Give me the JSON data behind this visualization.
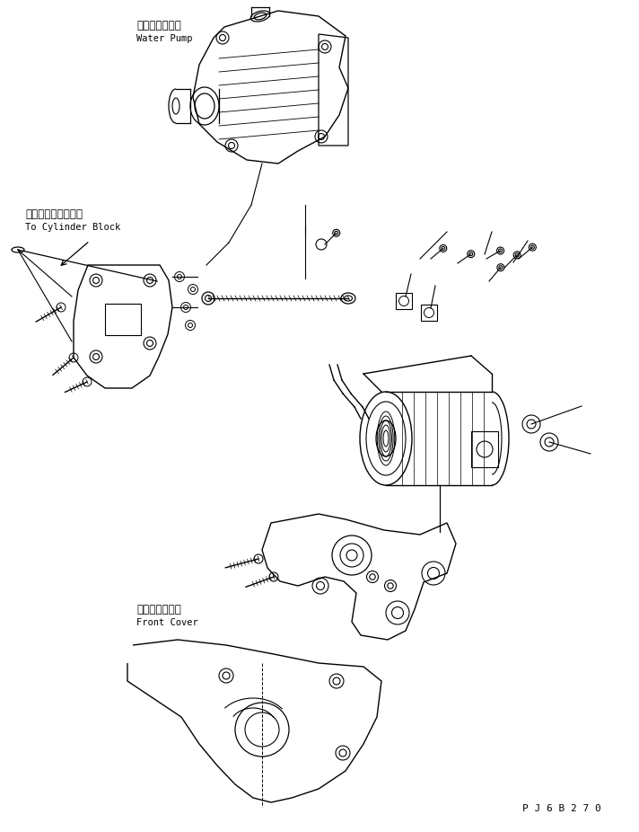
{
  "bg_color": "#ffffff",
  "line_color": "#000000",
  "text_color": "#000000",
  "figsize": [
    7.12,
    9.26
  ],
  "dpi": 100,
  "labels": {
    "water_pump_jp": "ウォータポンプ",
    "water_pump_en": "Water Pump",
    "cylinder_block_jp": "シリンダブロックへ",
    "cylinder_block_en": "To Cylinder Block",
    "front_cover_jp": "フロントカバー",
    "front_cover_en": "Front Cover",
    "part_number": "P J 6 B 2 7 0"
  }
}
